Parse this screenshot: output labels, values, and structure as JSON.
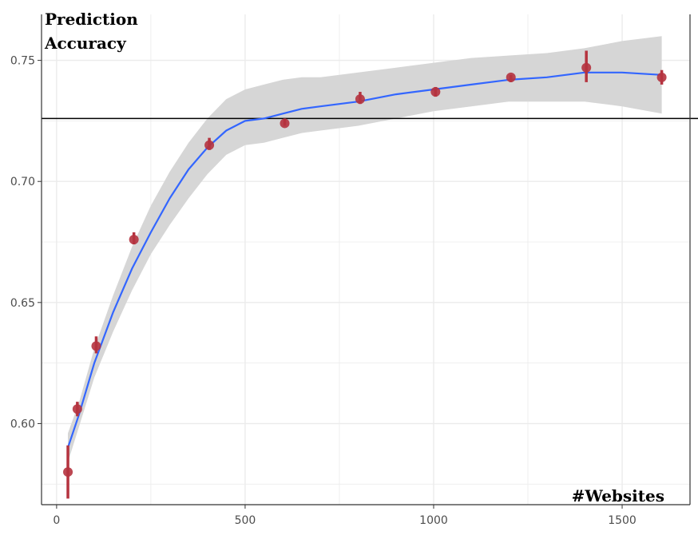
{
  "chart_data": {
    "type": "scatter",
    "title": "",
    "ylabel_lines": [
      "Prediction",
      "Accuracy"
    ],
    "xlabel": "#Websites",
    "xlim": [
      -40,
      1680
    ],
    "ylim": [
      0.5665,
      0.769
    ],
    "x_ticks": [
      0,
      500,
      1000,
      1500
    ],
    "x_tick_labels": [
      "0",
      "500",
      "1000",
      "1500"
    ],
    "y_ticks": [
      0.6,
      0.65,
      0.7,
      0.75
    ],
    "y_tick_labels": [
      "0.60",
      "0.65",
      "0.70",
      "0.75"
    ],
    "grid": true,
    "reference_line_y": 0.726,
    "points": [
      {
        "x": 30,
        "y": 0.58,
        "ylow": 0.569,
        "yhigh": 0.591
      },
      {
        "x": 55,
        "y": 0.606,
        "ylow": 0.603,
        "yhigh": 0.609
      },
      {
        "x": 105,
        "y": 0.632,
        "ylow": 0.629,
        "yhigh": 0.636
      },
      {
        "x": 205,
        "y": 0.676,
        "ylow": 0.674,
        "yhigh": 0.679
      },
      {
        "x": 405,
        "y": 0.715,
        "ylow": 0.713,
        "yhigh": 0.718
      },
      {
        "x": 605,
        "y": 0.724,
        "ylow": 0.723,
        "yhigh": 0.726
      },
      {
        "x": 805,
        "y": 0.734,
        "ylow": 0.732,
        "yhigh": 0.737
      },
      {
        "x": 1005,
        "y": 0.737,
        "ylow": 0.735,
        "yhigh": 0.739
      },
      {
        "x": 1205,
        "y": 0.743,
        "ylow": 0.741,
        "yhigh": 0.744
      },
      {
        "x": 1405,
        "y": 0.747,
        "ylow": 0.741,
        "yhigh": 0.754
      },
      {
        "x": 1605,
        "y": 0.743,
        "ylow": 0.74,
        "yhigh": 0.746
      }
    ],
    "smooth_line": [
      {
        "x": 30,
        "y": 0.59
      },
      {
        "x": 60,
        "y": 0.604
      },
      {
        "x": 100,
        "y": 0.625
      },
      {
        "x": 150,
        "y": 0.646
      },
      {
        "x": 200,
        "y": 0.664
      },
      {
        "x": 250,
        "y": 0.679
      },
      {
        "x": 300,
        "y": 0.693
      },
      {
        "x": 350,
        "y": 0.705
      },
      {
        "x": 400,
        "y": 0.714
      },
      {
        "x": 450,
        "y": 0.721
      },
      {
        "x": 500,
        "y": 0.725
      },
      {
        "x": 550,
        "y": 0.726
      },
      {
        "x": 600,
        "y": 0.728
      },
      {
        "x": 650,
        "y": 0.73
      },
      {
        "x": 700,
        "y": 0.731
      },
      {
        "x": 800,
        "y": 0.733
      },
      {
        "x": 900,
        "y": 0.736
      },
      {
        "x": 1000,
        "y": 0.738
      },
      {
        "x": 1100,
        "y": 0.74
      },
      {
        "x": 1200,
        "y": 0.742
      },
      {
        "x": 1300,
        "y": 0.743
      },
      {
        "x": 1400,
        "y": 0.745
      },
      {
        "x": 1500,
        "y": 0.745
      },
      {
        "x": 1605,
        "y": 0.744
      }
    ],
    "ribbon": [
      {
        "x": 30,
        "low": 0.584,
        "high": 0.596
      },
      {
        "x": 60,
        "low": 0.599,
        "high": 0.609
      },
      {
        "x": 100,
        "low": 0.619,
        "high": 0.631
      },
      {
        "x": 150,
        "low": 0.638,
        "high": 0.653
      },
      {
        "x": 200,
        "low": 0.655,
        "high": 0.673
      },
      {
        "x": 250,
        "low": 0.67,
        "high": 0.69
      },
      {
        "x": 300,
        "low": 0.682,
        "high": 0.704
      },
      {
        "x": 350,
        "low": 0.693,
        "high": 0.716
      },
      {
        "x": 400,
        "low": 0.703,
        "high": 0.726
      },
      {
        "x": 450,
        "low": 0.711,
        "high": 0.734
      },
      {
        "x": 500,
        "low": 0.715,
        "high": 0.738
      },
      {
        "x": 550,
        "low": 0.716,
        "high": 0.74
      },
      {
        "x": 600,
        "low": 0.718,
        "high": 0.742
      },
      {
        "x": 650,
        "low": 0.72,
        "high": 0.743
      },
      {
        "x": 700,
        "low": 0.721,
        "high": 0.743
      },
      {
        "x": 800,
        "low": 0.723,
        "high": 0.745
      },
      {
        "x": 900,
        "low": 0.726,
        "high": 0.747
      },
      {
        "x": 1000,
        "low": 0.729,
        "high": 0.749
      },
      {
        "x": 1100,
        "low": 0.731,
        "high": 0.751
      },
      {
        "x": 1200,
        "low": 0.733,
        "high": 0.752
      },
      {
        "x": 1300,
        "low": 0.733,
        "high": 0.753
      },
      {
        "x": 1400,
        "low": 0.733,
        "high": 0.755
      },
      {
        "x": 1500,
        "low": 0.731,
        "high": 0.758
      },
      {
        "x": 1605,
        "low": 0.728,
        "high": 0.76
      }
    ],
    "colors": {
      "points": "#b5333f",
      "smooth_line": "#3366ff",
      "ribbon": "#d6d6d6",
      "reference_line": "#000000",
      "grid": "#ebebeb",
      "axis": "#333333"
    }
  }
}
